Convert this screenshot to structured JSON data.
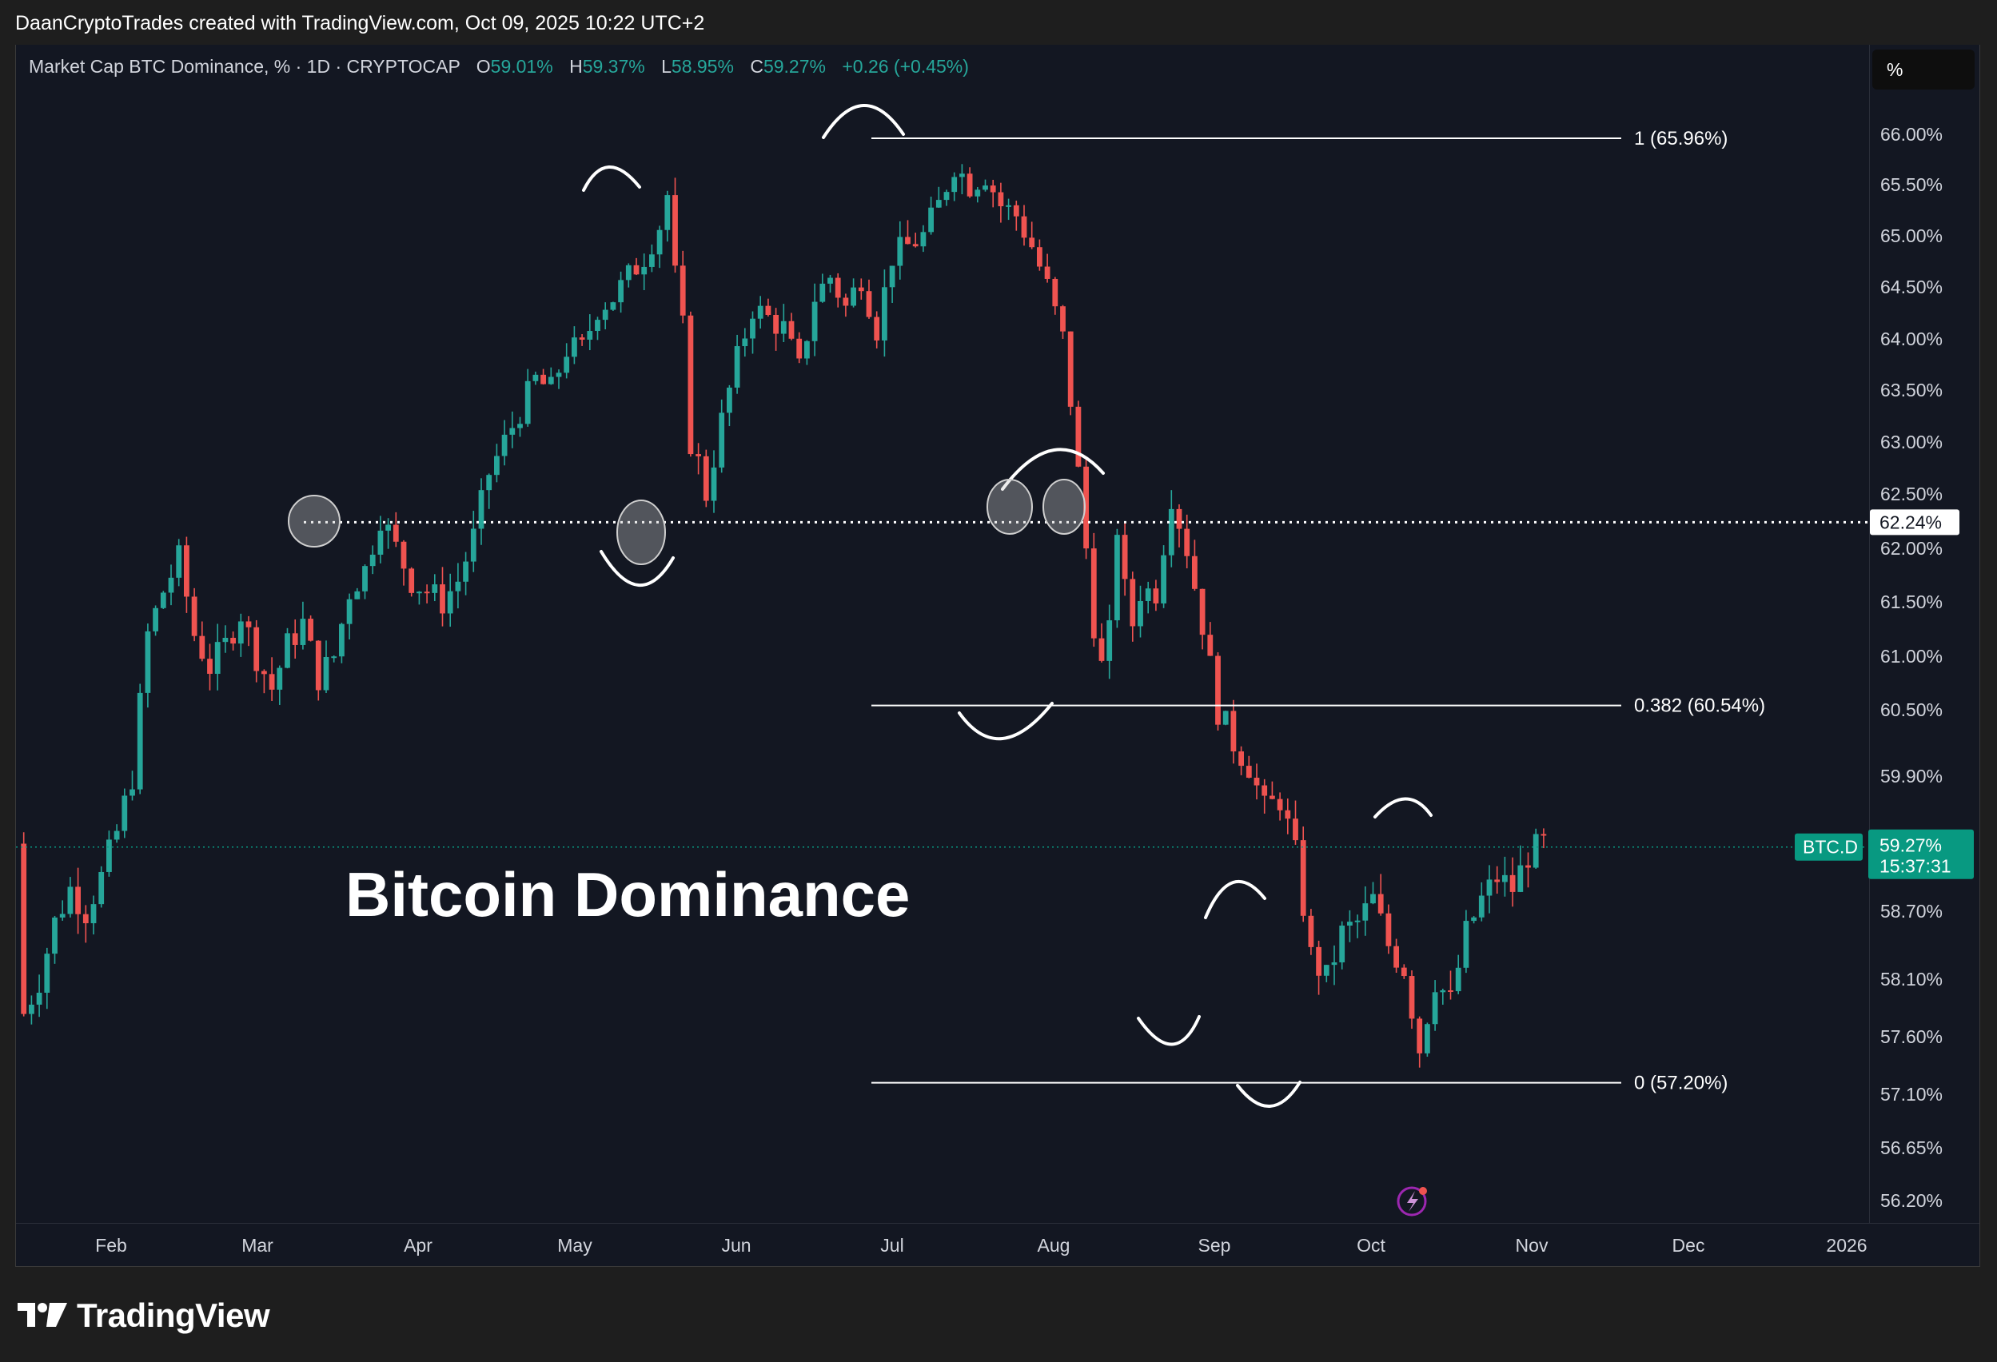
{
  "header": {
    "credit": "DaanCryptoTrades created with TradingView.com, Oct 09, 2025 10:22 UTC+2"
  },
  "legend": {
    "symbol": "Market Cap BTC Dominance, % · 1D · CRYPTOCAP",
    "o_label": "O",
    "o_value": "59.01%",
    "h_label": "H",
    "h_value": "59.37%",
    "l_label": "L",
    "l_value": "58.95%",
    "c_label": "C",
    "c_value": "59.27%",
    "change": "+0.26 (+0.45%)"
  },
  "unit_button": "%",
  "footer": {
    "brand": "TradingView"
  },
  "colors": {
    "up": "#26a69a",
    "down": "#ef5350",
    "background": "#131722",
    "annotation": "#ffffff",
    "last_price": "#089981"
  },
  "chart_data": {
    "type": "candlestick",
    "annotation_title": "Bitcoin Dominance",
    "price_ticks": [
      "66.00%",
      "65.50%",
      "65.00%",
      "64.50%",
      "64.00%",
      "63.50%",
      "63.00%",
      "62.50%",
      "62.00%",
      "61.50%",
      "61.00%",
      "60.50%",
      "59.90%",
      "58.70%",
      "58.10%",
      "57.60%",
      "57.10%",
      "56.65%",
      "56.20%"
    ],
    "time_ticks": [
      "Feb",
      "Mar",
      "Apr",
      "May",
      "Jun",
      "Jul",
      "Aug",
      "Sep",
      "Oct",
      "Nov",
      "Dec",
      "2026"
    ],
    "fib_levels": [
      {
        "label": "1 (65.96%)",
        "value": 65.96
      },
      {
        "label": "0.382 (60.54%)",
        "value": 60.54
      },
      {
        "label": "0 (57.20%)",
        "value": 57.2
      }
    ],
    "horizontal_level": {
      "value": 62.24,
      "label": "62.24%"
    },
    "last_price": {
      "symbol": "BTC.D",
      "value": "59.27%",
      "countdown": "15:37:31"
    },
    "ohlc": {
      "open": 59.01,
      "high": 59.37,
      "low": 58.95,
      "close": 59.27
    },
    "close_series": [
      [
        1,
        57.8
      ],
      [
        3,
        58.1
      ],
      [
        5,
        58.6
      ],
      [
        7,
        58.9
      ],
      [
        9,
        58.7
      ],
      [
        11,
        59.0
      ],
      [
        13,
        59.4
      ],
      [
        15,
        59.9
      ],
      [
        17,
        61.2
      ],
      [
        19,
        61.6
      ],
      [
        21,
        61.9
      ],
      [
        23,
        61.2
      ],
      [
        25,
        60.9
      ],
      [
        27,
        61.1
      ],
      [
        29,
        61.4
      ],
      [
        31,
        61.0
      ],
      [
        33,
        60.7
      ],
      [
        35,
        61.1
      ],
      [
        37,
        61.3
      ],
      [
        39,
        60.8
      ],
      [
        41,
        61.0
      ],
      [
        43,
        61.6
      ],
      [
        45,
        61.8
      ],
      [
        47,
        62.3
      ],
      [
        49,
        62.0
      ],
      [
        51,
        61.7
      ],
      [
        53,
        61.6
      ],
      [
        55,
        61.5
      ],
      [
        57,
        61.7
      ],
      [
        59,
        62.1
      ],
      [
        61,
        62.7
      ],
      [
        63,
        63.0
      ],
      [
        65,
        63.3
      ],
      [
        67,
        63.6
      ],
      [
        69,
        63.5
      ],
      [
        71,
        63.9
      ],
      [
        73,
        63.9
      ],
      [
        75,
        64.3
      ],
      [
        77,
        64.4
      ],
      [
        79,
        64.6
      ],
      [
        81,
        64.8
      ],
      [
        83,
        65.1
      ],
      [
        84,
        65.4
      ],
      [
        85,
        64.6
      ],
      [
        86,
        64.1
      ],
      [
        87,
        63.0
      ],
      [
        88,
        62.8
      ],
      [
        89,
        62.5
      ],
      [
        91,
        63.2
      ],
      [
        93,
        63.8
      ],
      [
        95,
        64.3
      ],
      [
        97,
        64.2
      ],
      [
        99,
        64.1
      ],
      [
        101,
        63.7
      ],
      [
        103,
        64.4
      ],
      [
        105,
        64.6
      ],
      [
        107,
        64.3
      ],
      [
        109,
        64.6
      ],
      [
        111,
        64.1
      ],
      [
        113,
        64.8
      ],
      [
        115,
        64.9
      ],
      [
        117,
        65.0
      ],
      [
        119,
        65.3
      ],
      [
        121,
        65.7
      ],
      [
        123,
        65.5
      ],
      [
        125,
        65.6
      ],
      [
        127,
        65.3
      ],
      [
        129,
        65.2
      ],
      [
        131,
        64.9
      ],
      [
        133,
        64.5
      ],
      [
        135,
        64.0
      ],
      [
        136,
        63.4
      ],
      [
        137,
        62.7
      ],
      [
        138,
        62.0
      ],
      [
        139,
        61.3
      ],
      [
        140,
        60.9
      ],
      [
        141,
        61.2
      ],
      [
        142,
        62.2
      ],
      [
        143,
        61.6
      ],
      [
        144,
        61.3
      ],
      [
        145,
        61.6
      ],
      [
        147,
        61.6
      ],
      [
        149,
        62.5
      ],
      [
        151,
        62.0
      ],
      [
        153,
        61.3
      ],
      [
        155,
        60.5
      ],
      [
        157,
        60.2
      ],
      [
        159,
        60.0
      ],
      [
        161,
        59.6
      ],
      [
        163,
        59.7
      ],
      [
        165,
        59.2
      ],
      [
        167,
        58.3
      ],
      [
        169,
        58.1
      ],
      [
        171,
        58.5
      ],
      [
        173,
        58.6
      ],
      [
        175,
        58.8
      ],
      [
        177,
        58.4
      ],
      [
        179,
        58.2
      ],
      [
        181,
        57.5
      ],
      [
        183,
        58.1
      ],
      [
        185,
        57.9
      ],
      [
        187,
        58.5
      ],
      [
        189,
        58.8
      ],
      [
        191,
        59.0
      ],
      [
        193,
        58.9
      ],
      [
        195,
        59.2
      ],
      [
        197,
        59.3
      ]
    ]
  }
}
